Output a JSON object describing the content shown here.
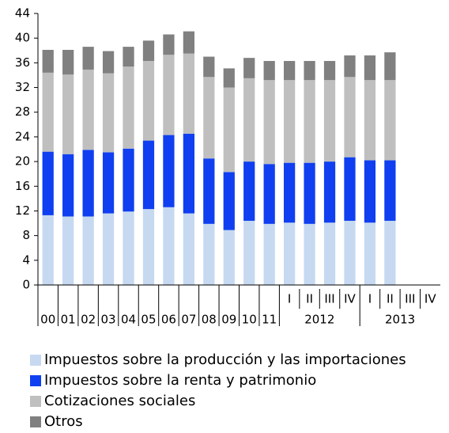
{
  "chart_data": {
    "type": "stacked-bar",
    "categories": [
      "00",
      "01",
      "02",
      "03",
      "04",
      "05",
      "06",
      "07",
      "08",
      "09",
      "10",
      "11",
      "I",
      "II",
      "III",
      "IV",
      "I",
      "II",
      "III",
      "IV"
    ],
    "x_groups": [
      {
        "label": "2012",
        "from": 12,
        "to": 15
      },
      {
        "label": "2013",
        "from": 16,
        "to": 19
      }
    ],
    "series": [
      {
        "name": "Impuestos sobre la producción y las importaciones",
        "color": "#c6d9f1",
        "values": [
          11.3,
          11.1,
          11.1,
          11.6,
          11.9,
          12.3,
          12.6,
          11.6,
          9.9,
          8.9,
          10.4,
          9.9,
          10.1,
          9.9,
          10.1,
          10.4,
          10.1,
          10.4,
          null,
          null
        ]
      },
      {
        "name": "Impuestos sobre la renta y patrimonio",
        "color": "#0f3ff0",
        "values": [
          10.3,
          10.1,
          10.8,
          9.9,
          10.2,
          11.1,
          11.7,
          12.9,
          10.6,
          9.4,
          9.6,
          9.7,
          9.7,
          9.9,
          9.9,
          10.3,
          10.1,
          9.8,
          null,
          null
        ]
      },
      {
        "name": "Cotizaciones sociales",
        "color": "#bfbfbf",
        "values": [
          12.8,
          12.9,
          13.0,
          12.8,
          13.3,
          12.9,
          13.0,
          13.0,
          13.2,
          13.7,
          13.5,
          13.6,
          13.4,
          13.4,
          13.2,
          13.0,
          13.0,
          13.0,
          null,
          null
        ]
      },
      {
        "name": "Otros",
        "color": "#808080",
        "values": [
          3.7,
          4.0,
          3.7,
          3.6,
          3.2,
          3.3,
          3.3,
          3.6,
          3.3,
          3.1,
          3.3,
          3.1,
          3.1,
          3.1,
          3.1,
          3.5,
          4.0,
          4.5,
          null,
          null
        ]
      }
    ],
    "ylim": [
      0,
      44
    ],
    "yticks": [
      0,
      4,
      8,
      12,
      16,
      20,
      24,
      28,
      32,
      36,
      40,
      44
    ],
    "grid": false,
    "legend": "bottom"
  }
}
